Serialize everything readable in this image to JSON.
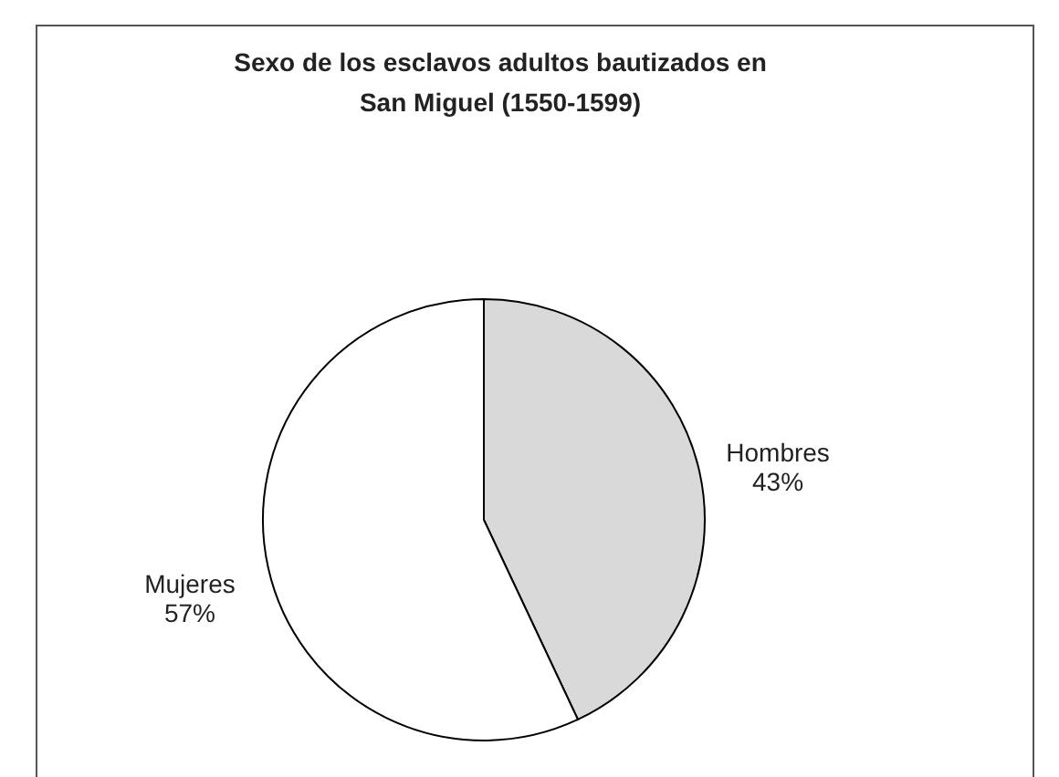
{
  "chart_data": {
    "type": "pie",
    "title": "Sexo de los esclavos adultos bautizados en San Miguel (1550-1599)",
    "categories": [
      "Hombres",
      "Mujeres"
    ],
    "values": [
      43,
      57
    ],
    "value_labels": [
      "43%",
      "57%"
    ],
    "colors": [
      "#d9d9d9",
      "#ffffff"
    ]
  }
}
